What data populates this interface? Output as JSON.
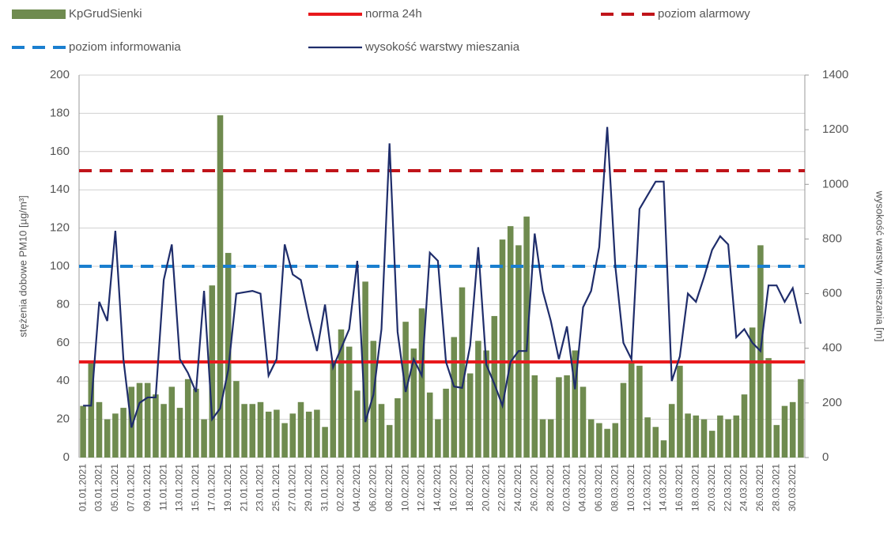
{
  "chart_data": {
    "type": "bar_line",
    "categories": [
      "01.01.2021",
      null,
      "03.01.2021",
      null,
      "05.01.2021",
      null,
      "07.01.2021",
      null,
      "09.01.2021",
      null,
      "11.01.2021",
      null,
      "13.01.2021",
      null,
      "15.01.2021",
      null,
      "17.01.2021",
      null,
      "19.01.2021",
      null,
      "21.01.2021",
      null,
      "23.01.2021",
      null,
      "25.01.2021",
      null,
      "27.01.2021",
      null,
      "29.01.2021",
      null,
      "31.01.2021",
      null,
      "02.02.2021",
      null,
      "04.02.2021",
      null,
      "06.02.2021",
      null,
      "08.02.2021",
      null,
      "10.02.2021",
      null,
      "12.02.2021",
      null,
      "14.02.2021",
      null,
      "16.02.2021",
      null,
      "18.02.2021",
      null,
      "20.02.2021",
      null,
      "22.02.2021",
      null,
      "24.02.2021",
      null,
      "26.02.2021",
      null,
      "28.02.2021",
      null,
      "02.03.2021",
      null,
      "04.03.2021",
      null,
      "06.03.2021",
      null,
      "08.03.2021",
      null,
      "10.03.2021",
      null,
      "12.03.2021",
      null,
      "14.03.2021",
      null,
      "16.03.2021",
      null,
      "18.03.2021",
      null,
      "20.03.2021",
      null,
      "22.03.2021",
      null,
      "24.03.2021",
      null,
      "26.03.2021",
      null,
      "28.03.2021",
      null,
      "30.03.2021",
      null
    ],
    "series": [
      {
        "name": "KpGrudSienki",
        "type": "bar",
        "color": "#6f8b4f",
        "values": [
          27,
          50,
          29,
          20,
          23,
          26,
          37,
          39,
          39,
          33,
          28,
          37,
          26,
          41,
          36,
          20,
          90,
          179,
          107,
          40,
          28,
          28,
          29,
          24,
          25,
          18,
          23,
          29,
          24,
          25,
          16,
          50,
          67,
          58,
          35,
          92,
          61,
          28,
          17,
          31,
          71,
          57,
          78,
          34,
          20,
          36,
          63,
          89,
          44,
          61,
          56,
          74,
          114,
          121,
          111,
          126,
          43,
          20,
          20,
          42,
          43,
          56,
          37,
          20,
          18,
          15,
          18,
          39,
          50,
          48,
          21,
          16,
          9,
          28,
          48,
          23,
          22,
          20,
          14,
          22,
          20,
          22,
          33,
          68,
          111,
          52,
          17,
          27,
          29,
          41
        ]
      },
      {
        "name": "wysokość warstwy mieszania",
        "type": "line",
        "axis": "y2",
        "color": "#1f2d6b",
        "values": [
          190,
          190,
          570,
          500,
          830,
          360,
          110,
          200,
          220,
          220,
          650,
          780,
          360,
          310,
          240,
          610,
          140,
          180,
          320,
          600,
          605,
          610,
          600,
          300,
          360,
          780,
          670,
          650,
          510,
          390,
          560,
          330,
          400,
          470,
          720,
          130,
          230,
          470,
          1150,
          460,
          240,
          360,
          300,
          750,
          720,
          350,
          260,
          255,
          410,
          770,
          340,
          270,
          190,
          350,
          390,
          390,
          820,
          610,
          500,
          360,
          480,
          250,
          550,
          610,
          770,
          1210,
          700,
          420,
          360,
          910,
          960,
          1010,
          1010,
          280,
          370,
          600,
          570,
          660,
          760,
          810,
          780,
          440,
          470,
          420,
          390,
          630,
          630,
          570,
          620,
          490
        ]
      }
    ],
    "reference_lines": [
      {
        "name": "norma 24h",
        "value": 50,
        "color": "#e8191c",
        "style": "solid"
      },
      {
        "name": "poziom alarmowy",
        "value": 150,
        "color": "#c0141a",
        "style": "dashed"
      },
      {
        "name": "poziom informowania",
        "value": 100,
        "color": "#1a7fcf",
        "style": "dashed"
      }
    ],
    "ylabel": "stężenia dobowe PM10 [µg/m³]",
    "y2label": "wysokość warstwy mieszania [m]",
    "ylim": [
      0,
      200
    ],
    "yticks": [
      0,
      20,
      40,
      60,
      80,
      100,
      120,
      140,
      160,
      180,
      200
    ],
    "y2lim": [
      0,
      1400
    ],
    "y2ticks": [
      0,
      200,
      400,
      600,
      800,
      1000,
      1200,
      1400
    ],
    "grid": true
  }
}
